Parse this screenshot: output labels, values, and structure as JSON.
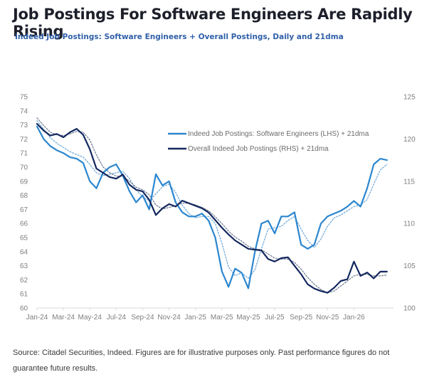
{
  "header": {
    "title": "Job Postings For Software Engineers Are Rapidly Rising",
    "subtitle": "Indeed Job Postings: Software Engineers + Overall Postings, Daily and 21dma"
  },
  "footer": {
    "text": "Source: Citadel Securities, Indeed. Figures are for illustrative purposes only. Past performance figures do not guarantee future results."
  },
  "colors": {
    "swe": "#2b86cf",
    "overall": "#14285f",
    "swe_ma": "#6fa6d6",
    "overall_ma": "#6c7890",
    "axis": "#d9d9d9"
  },
  "chart_data": {
    "type": "line",
    "title": "Job Postings For Software Engineers Are Rapidly Rising",
    "subtitle": "Indeed Job Postings: Software Engineers + Overall Postings, Daily and 21dma",
    "xlabel": "",
    "ylabel_left": "",
    "ylabel_right": "",
    "x_tick_labels": [
      "Jan-24",
      "Mar-24",
      "May-24",
      "Jul-24",
      "Sep-24",
      "Nov-24",
      "Jan-25",
      "Mar-25",
      "May-25",
      "Jul-25",
      "Sep-25",
      "Nov-25",
      "Jan-26"
    ],
    "y_left_ticks": [
      "75",
      "74",
      "73",
      "72",
      "71",
      "70",
      "69",
      "68",
      "67",
      "66",
      "65",
      "64",
      "63",
      "62",
      "61",
      "60"
    ],
    "y_right_ticks": [
      "125",
      "120",
      "115",
      "110",
      "105",
      "100"
    ],
    "ylim_left": [
      60,
      75
    ],
    "ylim_right": [
      100,
      125
    ],
    "x_range_months": [
      0,
      27
    ],
    "grid": false,
    "legend_position": "upper-center",
    "legend": [
      "Indeed Job Postings: Software Engineers (LHS) + 21dma",
      "Overall Indeed Job Postings (RHS) + 21dma"
    ],
    "x_months": [
      0,
      0.5,
      1,
      1.5,
      2,
      2.5,
      3,
      3.5,
      4,
      4.5,
      5,
      5.5,
      6,
      6.5,
      7,
      7.5,
      8,
      8.5,
      9,
      9.5,
      10,
      10.5,
      11,
      11.5,
      12,
      12.5,
      13,
      13.5,
      14,
      14.5,
      15,
      15.5,
      16,
      16.5,
      17,
      17.5,
      18,
      18.5,
      19,
      19.5,
      20,
      20.5,
      21,
      21.5,
      22,
      22.5,
      23,
      23.5,
      24,
      24.5,
      25,
      25.5,
      26,
      26.5
    ],
    "series": [
      {
        "name": "Indeed Job Postings: Software Engineers (LHS)",
        "axis": "left",
        "values": [
          72.9,
          72.0,
          71.5,
          71.2,
          71.0,
          70.7,
          70.6,
          70.3,
          69.0,
          68.5,
          69.6,
          70.0,
          70.2,
          69.4,
          68.3,
          67.5,
          68.0,
          67.0,
          69.5,
          68.7,
          69.0,
          67.5,
          66.8,
          66.5,
          66.5,
          66.7,
          66.2,
          65.0,
          62.6,
          61.5,
          62.8,
          62.5,
          61.4,
          64.0,
          66.0,
          66.2,
          65.3,
          66.5,
          66.5,
          66.8,
          64.5,
          64.2,
          64.5,
          66.0,
          66.5,
          66.7,
          66.9,
          67.2,
          67.6,
          67.2,
          68.5,
          70.2,
          70.6,
          70.5
        ]
      },
      {
        "name": "Overall Indeed Job Postings (RHS)",
        "axis": "right",
        "values": [
          121.8,
          121.0,
          120.4,
          120.6,
          120.2,
          120.8,
          121.2,
          120.5,
          118.8,
          116.5,
          116.0,
          115.5,
          115.3,
          115.8,
          114.6,
          114.0,
          113.8,
          112.8,
          111.0,
          111.8,
          112.3,
          112.0,
          112.7,
          112.4,
          112.1,
          111.8,
          111.3,
          110.4,
          109.5,
          108.7,
          108.0,
          107.5,
          107.0,
          106.9,
          106.8,
          105.8,
          105.5,
          105.9,
          106.0,
          105.0,
          104.0,
          102.8,
          102.3,
          102.0,
          101.8,
          102.4,
          103.2,
          103.4,
          105.5,
          103.8,
          104.2,
          103.5,
          104.3,
          104.3
        ]
      },
      {
        "name": "Software Engineers 21dma (LHS)",
        "axis": "left",
        "style": "dotted",
        "values": [
          73.3,
          72.7,
          72.1,
          71.7,
          71.4,
          71.1,
          70.9,
          70.7,
          70.2,
          69.6,
          69.4,
          69.5,
          69.6,
          69.7,
          69.2,
          68.4,
          67.9,
          67.6,
          68.1,
          68.6,
          68.8,
          68.2,
          67.3,
          66.7,
          66.4,
          66.5,
          66.5,
          66.0,
          64.6,
          62.9,
          62.3,
          62.5,
          62.1,
          62.7,
          64.2,
          65.6,
          65.7,
          65.8,
          66.2,
          66.5,
          65.6,
          64.8,
          64.3,
          64.9,
          65.8,
          66.4,
          66.6,
          66.9,
          67.2,
          67.3,
          67.7,
          68.8,
          69.8,
          70.2
        ]
      },
      {
        "name": "Overall 21dma (RHS)",
        "axis": "right",
        "style": "dotted",
        "values": [
          122.5,
          121.6,
          120.8,
          120.5,
          120.4,
          120.6,
          120.9,
          120.8,
          119.9,
          118.1,
          116.7,
          116.0,
          115.6,
          115.6,
          115.0,
          114.3,
          114.0,
          113.4,
          112.2,
          111.7,
          111.9,
          112.1,
          112.4,
          112.4,
          112.2,
          111.9,
          111.5,
          110.8,
          110.0,
          109.1,
          108.4,
          107.9,
          107.3,
          107.0,
          106.9,
          106.4,
          105.9,
          105.8,
          105.8,
          105.4,
          104.6,
          103.6,
          102.8,
          102.2,
          101.8,
          102.0,
          102.6,
          103.2,
          103.8,
          104.0,
          104.0,
          103.8,
          103.8,
          103.9
        ]
      }
    ]
  }
}
